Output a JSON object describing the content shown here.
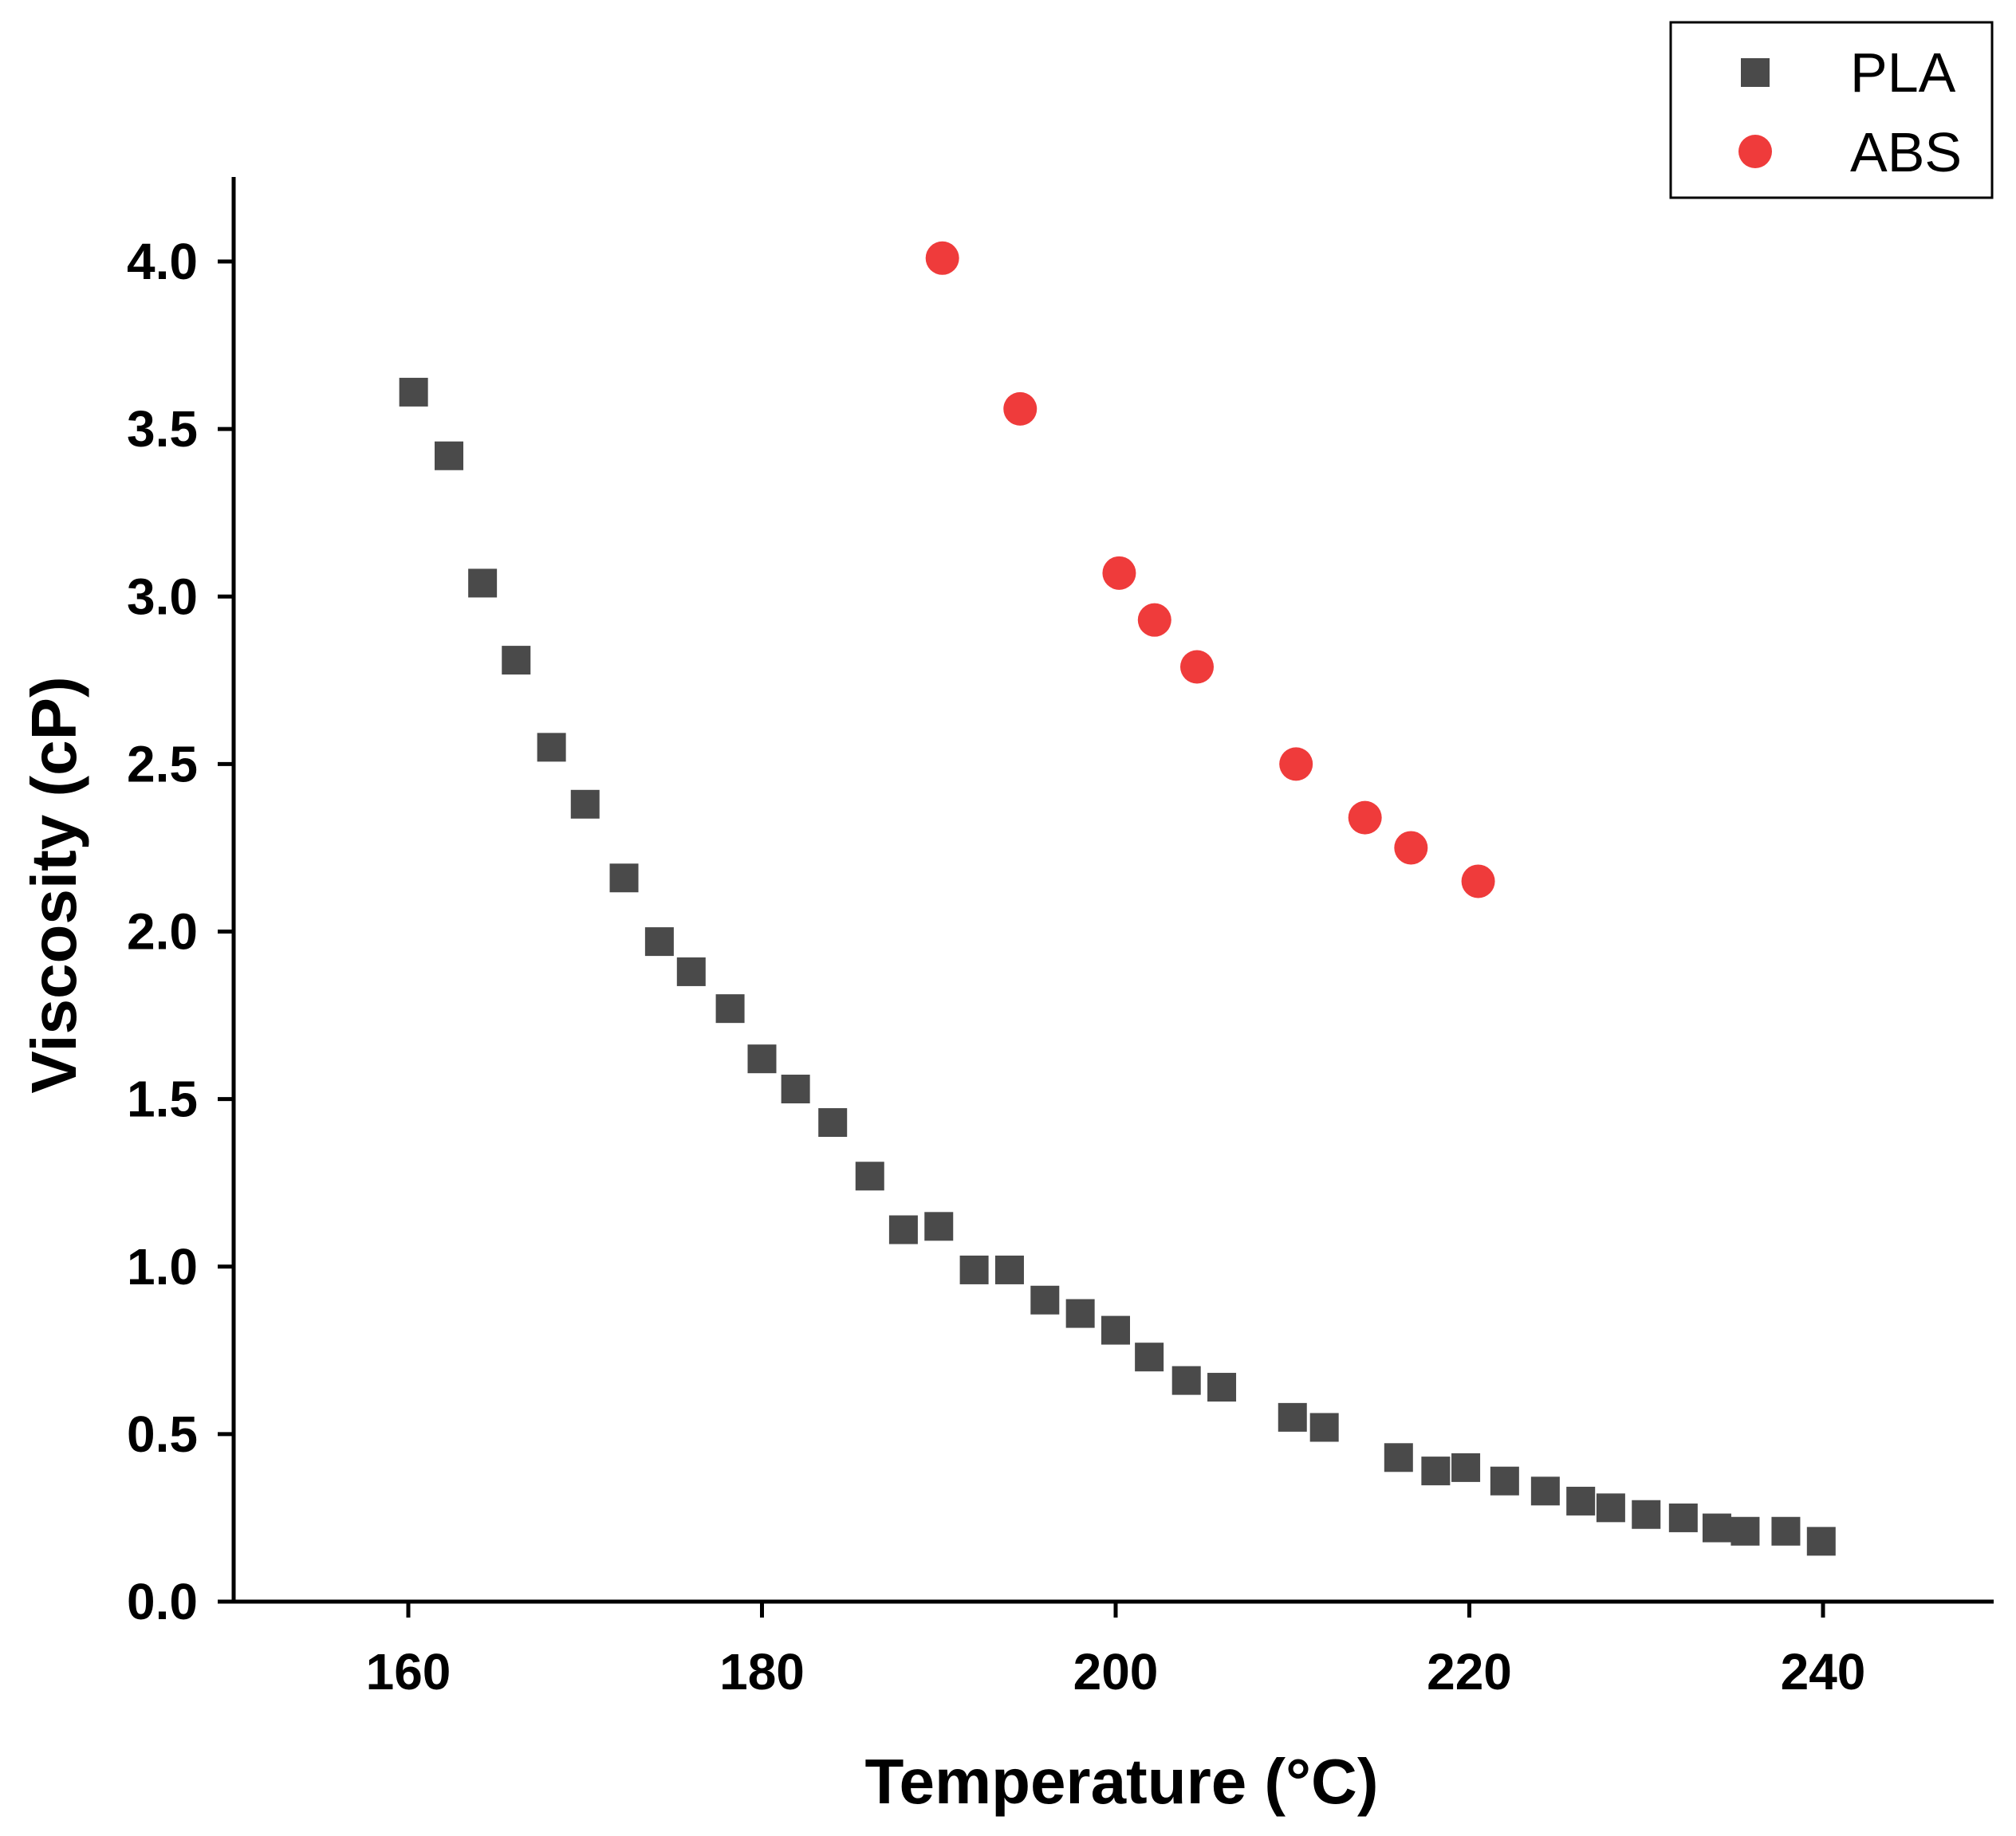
{
  "chart_data": {
    "type": "scatter",
    "title": "",
    "xlabel": "Temperature (°C)",
    "ylabel": "Viscosity (cP)",
    "xlim": [
      150,
      250
    ],
    "ylim": [
      0,
      4.25
    ],
    "grid": false,
    "legend_position": "top-right",
    "x_ticks": [
      160,
      180,
      200,
      220,
      240
    ],
    "x_tick_labels": [
      "160",
      "180",
      "200",
      "220",
      "240"
    ],
    "y_ticks": [
      0.0,
      0.5,
      1.0,
      1.5,
      2.0,
      2.5,
      3.0,
      3.5,
      4.0
    ],
    "y_tick_labels": [
      "0.0",
      "0.5",
      "1.0",
      "1.5",
      "2.0",
      "2.5",
      "3.0",
      "3.5",
      "4.0"
    ],
    "series": [
      {
        "name": "PLA",
        "marker": "square",
        "color": "#4a4a4a",
        "x": [
          160.3,
          162.3,
          164.2,
          166.1,
          168.1,
          170.0,
          172.2,
          174.2,
          176.0,
          178.2,
          180.0,
          181.9,
          184.0,
          186.1,
          188.0,
          190.0,
          192.0,
          194.0,
          196.0,
          198.0,
          200.0,
          201.9,
          204.0,
          206.0,
          210.0,
          211.8,
          216.0,
          218.1,
          219.8,
          222.0,
          224.3,
          226.3,
          228.0,
          230.0,
          232.1,
          234.0,
          235.6,
          237.9,
          239.9
        ],
        "y": [
          3.61,
          3.42,
          3.04,
          2.81,
          2.55,
          2.38,
          2.16,
          1.97,
          1.88,
          1.77,
          1.62,
          1.53,
          1.43,
          1.27,
          1.11,
          1.12,
          0.99,
          0.99,
          0.9,
          0.86,
          0.81,
          0.73,
          0.66,
          0.64,
          0.55,
          0.52,
          0.43,
          0.39,
          0.4,
          0.36,
          0.33,
          0.3,
          0.28,
          0.26,
          0.25,
          0.22,
          0.21,
          0.21,
          0.18
        ]
      },
      {
        "name": "ABS",
        "marker": "circle",
        "color": "#ef3b3b",
        "x": [
          190.2,
          194.6,
          200.2,
          202.2,
          204.6,
          210.2,
          214.1,
          216.7,
          220.5
        ],
        "y": [
          4.01,
          3.56,
          3.07,
          2.93,
          2.79,
          2.5,
          2.34,
          2.25,
          2.15
        ]
      }
    ]
  }
}
